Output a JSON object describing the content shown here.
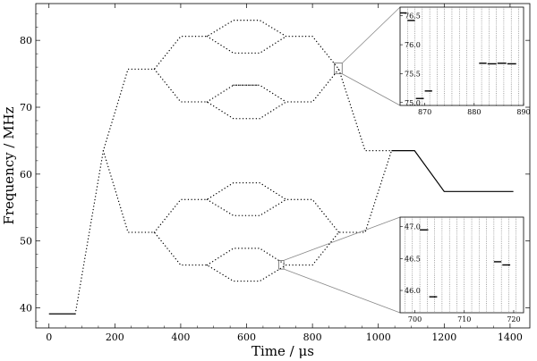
{
  "chart_data": {
    "type": "line",
    "xlabel": "Time / μs",
    "ylabel": "Frequency / MHz",
    "xlim": [
      -40,
      1460
    ],
    "ylim": [
      37,
      85.5
    ],
    "xticks": [
      0,
      200,
      400,
      600,
      800,
      1000,
      1200,
      1400
    ],
    "yticks": [
      40,
      50,
      60,
      70,
      80
    ],
    "grid": false,
    "series": [
      {
        "style": "solid",
        "segments": [
          {
            "x": [
              0,
              80
            ],
            "y": [
              39.1,
              39.1
            ]
          },
          {
            "x": [
              1040,
              1110,
              1200,
              1410
            ],
            "y": [
              63.5,
              63.5,
              57.4,
              57.4
            ]
          }
        ]
      },
      {
        "style": "dotted",
        "segments": [
          {
            "x": [
              80,
              165,
              240,
              320,
              400,
              480,
              560,
              640,
              720,
              800,
              880,
              960,
              1040
            ],
            "y": [
              39.1,
              63.5,
              75.7,
              75.7,
              80.6,
              80.6,
              83.0,
              83.0,
              80.6,
              80.6,
              75.7,
              63.5,
              63.5
            ]
          },
          {
            "x": [
              165,
              240,
              320,
              400,
              480,
              560,
              640,
              720,
              800,
              880,
              960,
              1040
            ],
            "y": [
              63.5,
              51.3,
              51.3,
              46.4,
              46.4,
              44.0,
              44.0,
              46.4,
              46.4,
              51.3,
              51.3,
              63.5
            ]
          },
          {
            "x": [
              480,
              560,
              640,
              720
            ],
            "y": [
              80.6,
              78.1,
              78.1,
              80.6
            ]
          },
          {
            "x": [
              320,
              400,
              480,
              560,
              640,
              720,
              800,
              880
            ],
            "y": [
              75.7,
              70.8,
              70.8,
              68.3,
              68.3,
              70.8,
              70.8,
              75.7
            ]
          },
          {
            "x": [
              560,
              640
            ],
            "y": [
              73.3,
              73.3
            ]
          },
          {
            "x": [
              480,
              560,
              640,
              720
            ],
            "y": [
              70.8,
              73.3,
              73.3,
              70.8
            ]
          },
          {
            "x": [
              320,
              400,
              480,
              560,
              640,
              720,
              800,
              880
            ],
            "y": [
              51.3,
              56.2,
              56.2,
              58.7,
              58.7,
              56.2,
              56.2,
              51.3
            ]
          },
          {
            "x": [
              480,
              560,
              640,
              720
            ],
            "y": [
              56.2,
              53.8,
              53.8,
              56.2
            ]
          },
          {
            "x": [
              480,
              560,
              640,
              720
            ],
            "y": [
              46.4,
              48.9,
              48.9,
              46.4
            ]
          }
        ]
      }
    ],
    "insets": [
      {
        "xlim": [
          865,
          890
        ],
        "ylim": [
          74.95,
          76.65
        ],
        "xticks": [
          870,
          880,
          890
        ],
        "yticks": [
          75.0,
          75.5,
          76.0,
          76.5
        ],
        "ytick_labels": [
          "75.0",
          "75.5",
          "76.0",
          "76.5"
        ],
        "zoom_box": {
          "x": [
            866,
            890
          ],
          "y": [
            75.0,
            76.6
          ]
        },
        "steps": [
          {
            "x": [
              865,
              866.3
            ],
            "y": 76.55
          },
          {
            "x": [
              866.5,
              868.0
            ],
            "y": 76.42
          },
          {
            "x": [
              868.2,
              869.8
            ],
            "y": 75.07
          },
          {
            "x": [
              870.0,
              871.5
            ],
            "y": 75.2
          },
          {
            "x": [
              881.0,
              882.5
            ],
            "y": 75.68
          },
          {
            "x": [
              882.7,
              884.5
            ],
            "y": 75.67
          },
          {
            "x": [
              884.7,
              886.5
            ],
            "y": 75.68
          },
          {
            "x": [
              886.7,
              888.5
            ],
            "y": 75.67
          }
        ],
        "gridlines": [
          866.5,
          868,
          869.5,
          871,
          872.5,
          874,
          875.5,
          877,
          878.5,
          880,
          881.5,
          883,
          884.5,
          886,
          887.5,
          889
        ]
      },
      {
        "xlim": [
          697,
          722
        ],
        "ylim": [
          45.65,
          47.15
        ],
        "xticks": [
          700,
          710,
          720
        ],
        "yticks": [
          46.0,
          46.5,
          47.0
        ],
        "ytick_labels": [
          "46.0",
          "46.5",
          "47.0"
        ],
        "zoom_box": {
          "x": [
            698,
            713
          ],
          "y": [
            45.8,
            47.1
          ]
        },
        "steps": [
          {
            "x": [
              701.0,
              702.7
            ],
            "y": 46.95
          },
          {
            "x": [
              702.9,
              704.5
            ],
            "y": 45.9
          },
          {
            "x": [
              716.0,
              717.5
            ],
            "y": 46.45
          },
          {
            "x": [
              717.7,
              719.3
            ],
            "y": 46.4
          }
        ],
        "gridlines": [
          698,
          699.5,
          701,
          702.5,
          704,
          705.5,
          707,
          708.5,
          710,
          711.5,
          713,
          714.5,
          716,
          717.5,
          719,
          720.5
        ]
      }
    ]
  }
}
